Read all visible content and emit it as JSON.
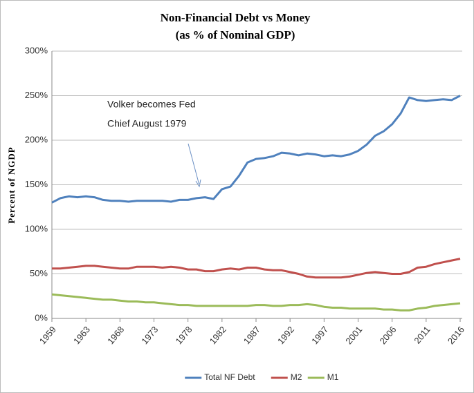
{
  "chart_data": {
    "type": "line",
    "title": "Non-Financial Debt vs Money",
    "subtitle": "(as % of Nominal GDP)",
    "ylabel": "Percent of NGDP",
    "annotation": [
      "Volker  becomes Fed",
      "Chief August 1979"
    ],
    "categories": [
      "1959",
      null,
      null,
      null,
      "1963",
      null,
      null,
      null,
      "1968",
      null,
      null,
      null,
      "1973",
      null,
      null,
      null,
      "1978",
      null,
      null,
      null,
      "1982",
      null,
      null,
      null,
      "1987",
      null,
      null,
      null,
      "1992",
      null,
      null,
      null,
      "1997",
      null,
      null,
      null,
      "2001",
      null,
      null,
      null,
      "2006",
      null,
      null,
      null,
      "2011",
      null,
      null,
      null,
      "2016"
    ],
    "series": [
      {
        "name": "Total NF Debt",
        "color": "#4f81bd",
        "values": [
          130,
          135,
          137,
          136,
          137,
          136,
          133,
          132,
          132,
          131,
          132,
          132,
          132,
          132,
          131,
          133,
          133,
          135,
          136,
          134,
          145,
          148,
          160,
          175,
          179,
          180,
          182,
          186,
          185,
          183,
          185,
          184,
          182,
          183,
          182,
          184,
          188,
          195,
          205,
          210,
          218,
          230,
          248,
          245,
          244,
          245,
          246,
          245,
          250
        ]
      },
      {
        "name": "M2",
        "color": "#c0504d",
        "values": [
          56,
          56,
          57,
          58,
          59,
          59,
          58,
          57,
          56,
          56,
          58,
          58,
          58,
          57,
          58,
          57,
          55,
          55,
          53,
          53,
          55,
          56,
          55,
          57,
          57,
          55,
          54,
          54,
          52,
          50,
          47,
          46,
          46,
          46,
          46,
          47,
          49,
          51,
          52,
          51,
          50,
          50,
          52,
          57,
          58,
          61,
          63,
          65,
          67
        ]
      },
      {
        "name": "M1",
        "color": "#9bbb59",
        "values": [
          27,
          26,
          25,
          24,
          23,
          22,
          21,
          21,
          20,
          19,
          19,
          18,
          18,
          17,
          16,
          15,
          15,
          14,
          14,
          14,
          14,
          14,
          14,
          14,
          15,
          15,
          14,
          14,
          15,
          15,
          16,
          15,
          13,
          12,
          12,
          11,
          11,
          11,
          11,
          10,
          10,
          9,
          9,
          11,
          12,
          14,
          15,
          16,
          17
        ]
      }
    ],
    "ylim": [
      0,
      300
    ],
    "yticks": [
      {
        "value": 0,
        "label": "0%"
      },
      {
        "value": 50,
        "label": "50%"
      },
      {
        "value": 100,
        "label": "100%"
      },
      {
        "value": 150,
        "label": "150%"
      },
      {
        "value": 200,
        "label": "200%"
      },
      {
        "value": 250,
        "label": "250%"
      },
      {
        "value": 300,
        "label": "300%"
      }
    ],
    "grid": true,
    "legend": "bottom"
  }
}
